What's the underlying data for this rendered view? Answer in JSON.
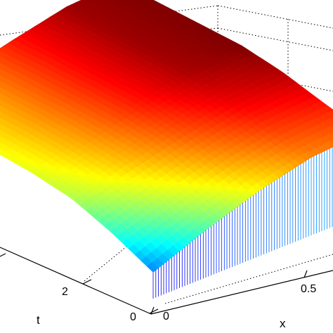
{
  "chart_data": {
    "type": "surface",
    "title": "",
    "xlabel": "x",
    "tlabel": "t",
    "zlabel": "",
    "x_ticks": [
      "0",
      "0.5"
    ],
    "t_ticks": [
      "0",
      "2"
    ],
    "colormap": "jet",
    "grid": true,
    "surface_samples": {
      "x": [
        0,
        0.25,
        0.5,
        0.75,
        1.0
      ],
      "t_rows": [
        {
          "t": 0,
          "z": [
            0.25,
            0.45,
            0.62,
            0.74,
            0.78
          ]
        },
        {
          "t": 1,
          "z": [
            0.42,
            0.58,
            0.72,
            0.82,
            0.86
          ]
        },
        {
          "t": 2,
          "z": [
            0.55,
            0.68,
            0.8,
            0.9,
            0.95
          ]
        },
        {
          "t": 3,
          "z": [
            0.6,
            0.72,
            0.85,
            0.96,
            1.0
          ]
        },
        {
          "t": 4,
          "z": [
            0.62,
            0.74,
            0.86,
            0.97,
            1.0
          ]
        }
      ]
    }
  }
}
